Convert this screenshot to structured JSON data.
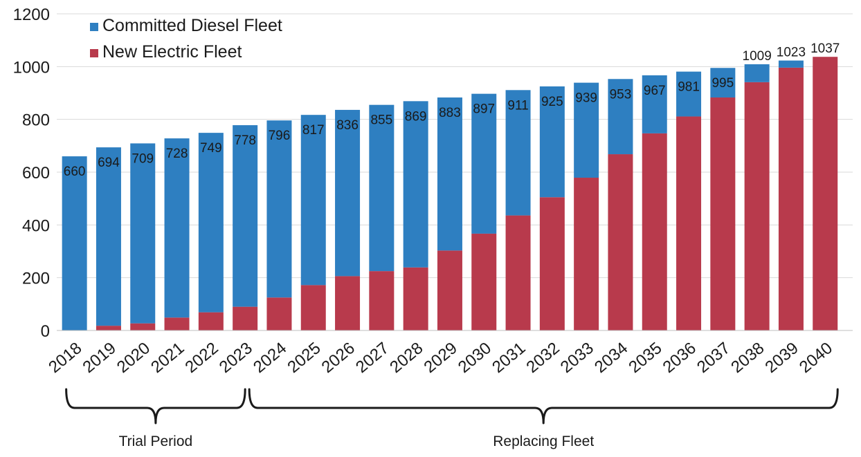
{
  "chart_data": {
    "type": "bar",
    "stacked": true,
    "categories": [
      "2018",
      "2019",
      "2020",
      "2021",
      "2022",
      "2023",
      "2024",
      "2025",
      "2026",
      "2027",
      "2028",
      "2029",
      "2030",
      "2031",
      "2032",
      "2033",
      "2034",
      "2035",
      "2036",
      "2037",
      "2038",
      "2039",
      "2040"
    ],
    "series": [
      {
        "name": "Committed Diesel Fleet",
        "color": "#2e7fc1",
        "values": [
          660,
          676,
          682,
          679,
          680,
          688,
          671,
          645,
          630,
          630,
          630,
          580,
          530,
          475,
          420,
          360,
          285,
          220,
          170,
          112,
          68,
          27,
          0
        ]
      },
      {
        "name": "New Electric Fleet",
        "color": "#b83a4c",
        "values": [
          0,
          18,
          27,
          49,
          69,
          90,
          125,
          172,
          206,
          225,
          239,
          303,
          367,
          436,
          505,
          579,
          668,
          747,
          811,
          883,
          941,
          996,
          1037
        ]
      }
    ],
    "totals": [
      660,
      694,
      709,
      728,
      749,
      778,
      796,
      817,
      836,
      855,
      869,
      883,
      897,
      911,
      925,
      939,
      953,
      967,
      981,
      995,
      1009,
      1023,
      1037
    ],
    "yticks": [
      0,
      200,
      400,
      600,
      800,
      1000,
      1200
    ],
    "ylim": [
      0,
      1200
    ],
    "title": "",
    "xlabel": "",
    "ylabel": "",
    "legend_position": "top-left",
    "grid": true,
    "groups": [
      {
        "label": "Trial Period",
        "from": "2018",
        "to": "2023"
      },
      {
        "label": "Replacing Fleet",
        "from": "2023",
        "to": "2040"
      }
    ]
  }
}
